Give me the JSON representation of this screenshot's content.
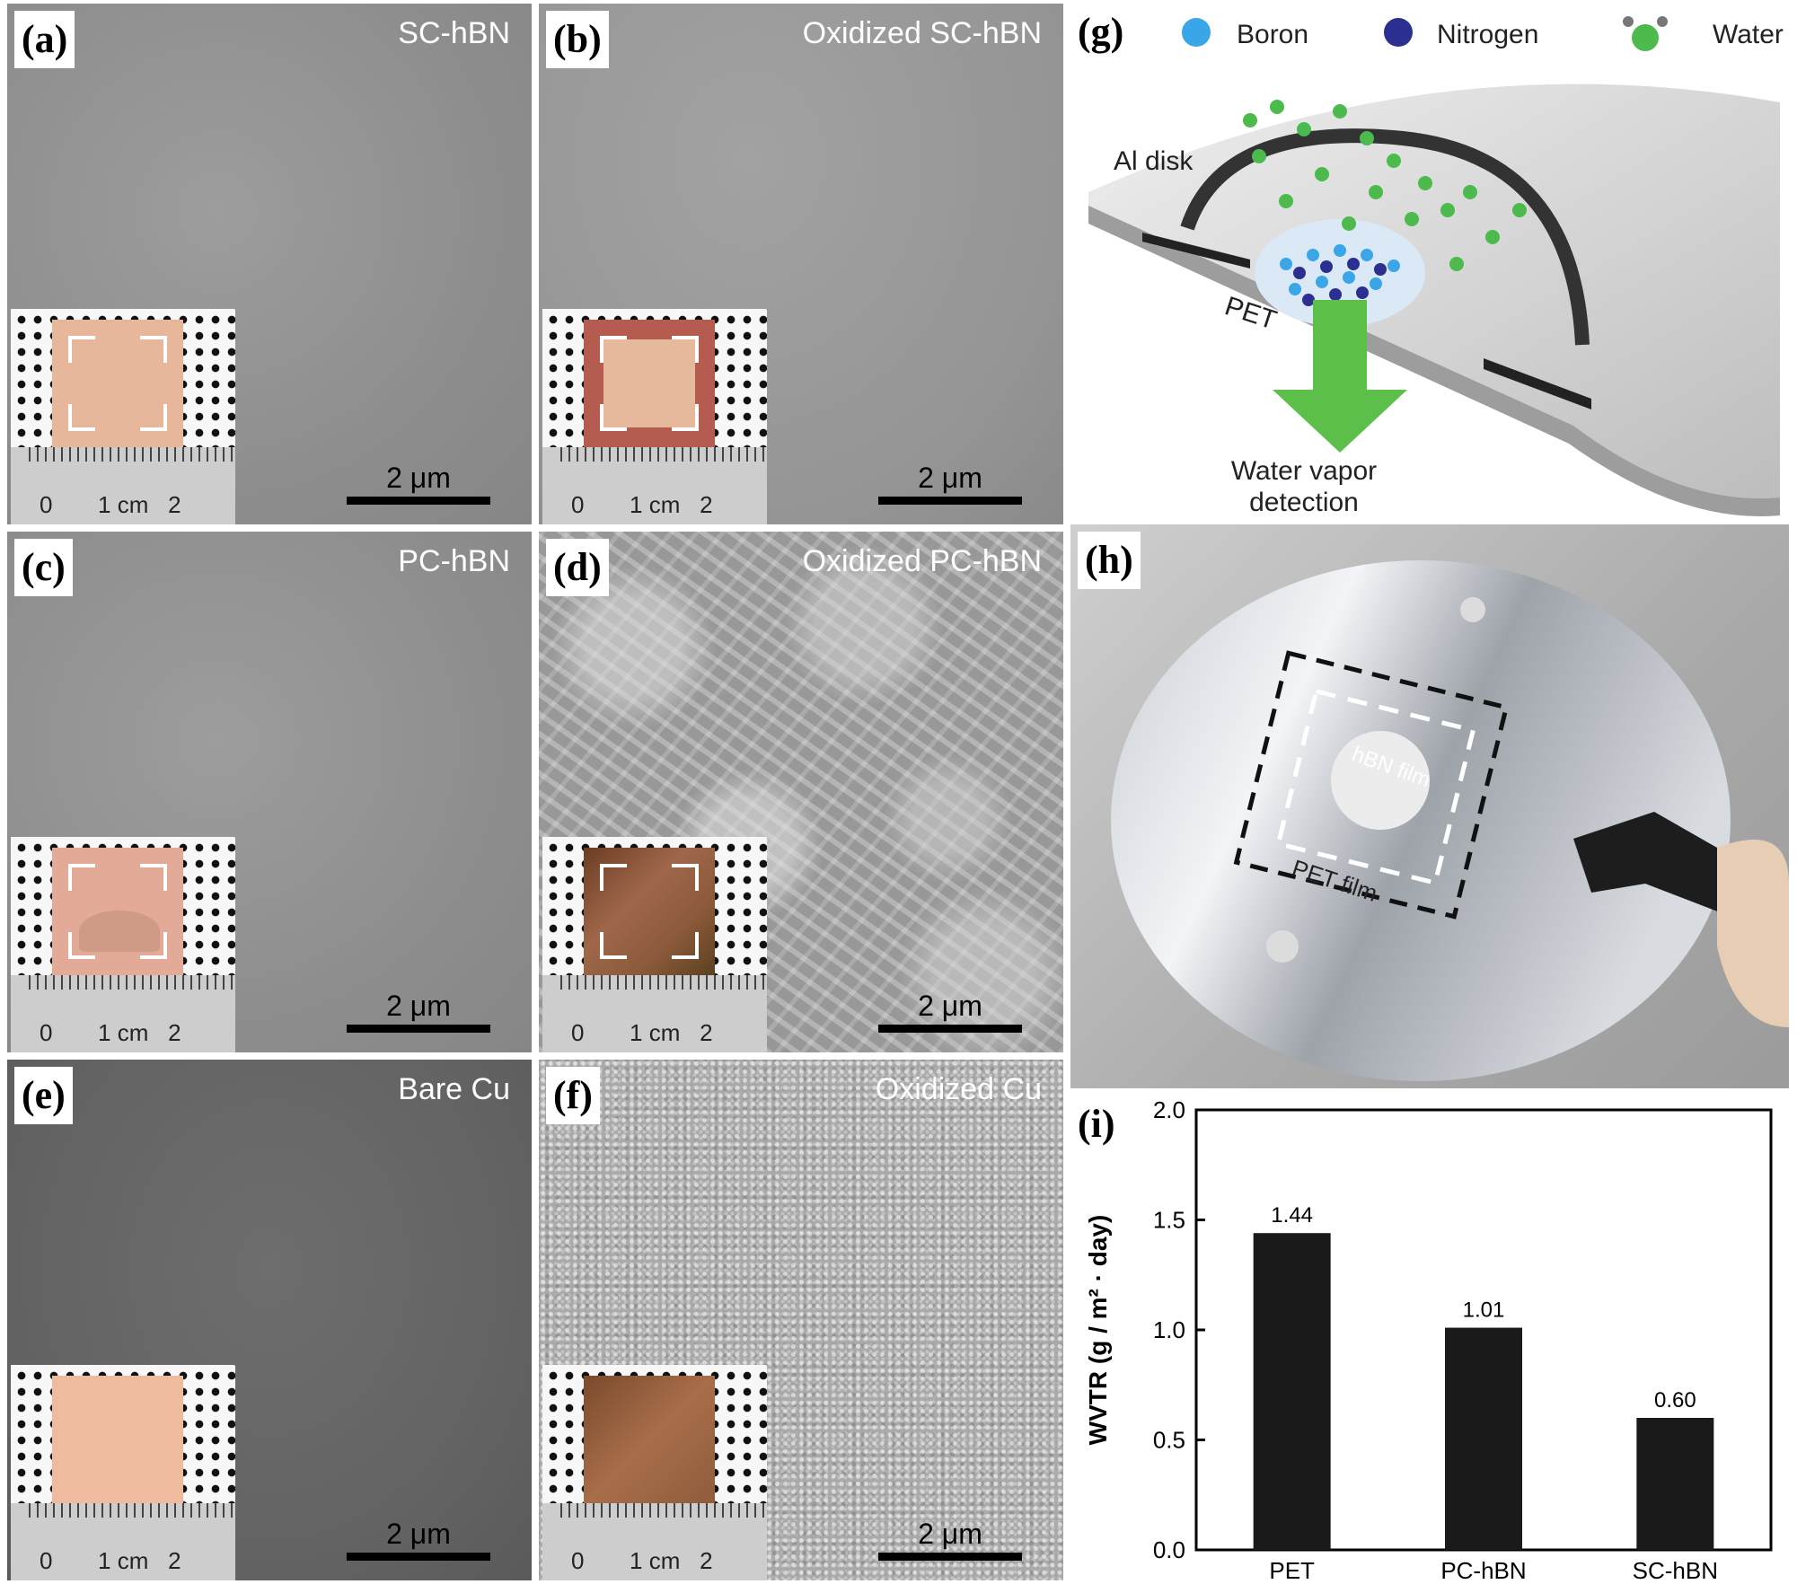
{
  "figure": {
    "panels": {
      "a": {
        "letter": "(a)",
        "title": "SC-hBN",
        "scale_label": "2 μm",
        "ruler_labels": [
          "0",
          "1 cm",
          "2"
        ]
      },
      "b": {
        "letter": "(b)",
        "title": "Oxidized SC-hBN",
        "scale_label": "2 μm",
        "ruler_labels": [
          "0",
          "1 cm",
          "2"
        ]
      },
      "c": {
        "letter": "(c)",
        "title": "PC-hBN",
        "scale_label": "2 μm",
        "ruler_labels": [
          "0",
          "1 cm",
          "2"
        ]
      },
      "d": {
        "letter": "(d)",
        "title": "Oxidized PC-hBN",
        "scale_label": "2 μm",
        "ruler_labels": [
          "0",
          "1 cm",
          "2"
        ]
      },
      "e": {
        "letter": "(e)",
        "title": "Bare Cu",
        "scale_label": "2 μm",
        "ruler_labels": [
          "0",
          "1 cm",
          "2"
        ]
      },
      "f": {
        "letter": "(f)",
        "title": "Oxidized Cu",
        "scale_label": "2 μm",
        "ruler_labels": [
          "0",
          "1 cm",
          "2"
        ]
      },
      "g": {
        "letter": "(g)",
        "legend": [
          "Boron",
          "Nitrogen",
          "Water"
        ],
        "labels": {
          "al_disk": "Al disk",
          "pet": "PET",
          "detection_line1": "Water vapor",
          "detection_line2": "detection"
        }
      },
      "h": {
        "letter": "(h)",
        "labels": {
          "hbn_film": "hBN film",
          "pet_film": "PET film"
        }
      },
      "i": {
        "letter": "(i)"
      }
    },
    "colors": {
      "boron": "#3aa6e8",
      "nitrogen": "#2b2f8f",
      "water": "#4cba4c",
      "arrow": "#5cbf4a",
      "bar": "#1a1a1a"
    }
  },
  "chart_data": {
    "type": "bar",
    "categories": [
      "PET",
      "PC-hBN",
      "SC-hBN"
    ],
    "values": [
      1.44,
      1.01,
      0.6
    ],
    "value_labels": [
      "1.44",
      "1.01",
      "0.60"
    ],
    "title": "",
    "xlabel": "",
    "ylabel": "WVTR (g / m² · day)",
    "ylim": [
      0.0,
      2.0
    ],
    "yticks": [
      "0.0",
      "0.5",
      "1.0",
      "1.5",
      "2.0"
    ],
    "grid": false
  }
}
